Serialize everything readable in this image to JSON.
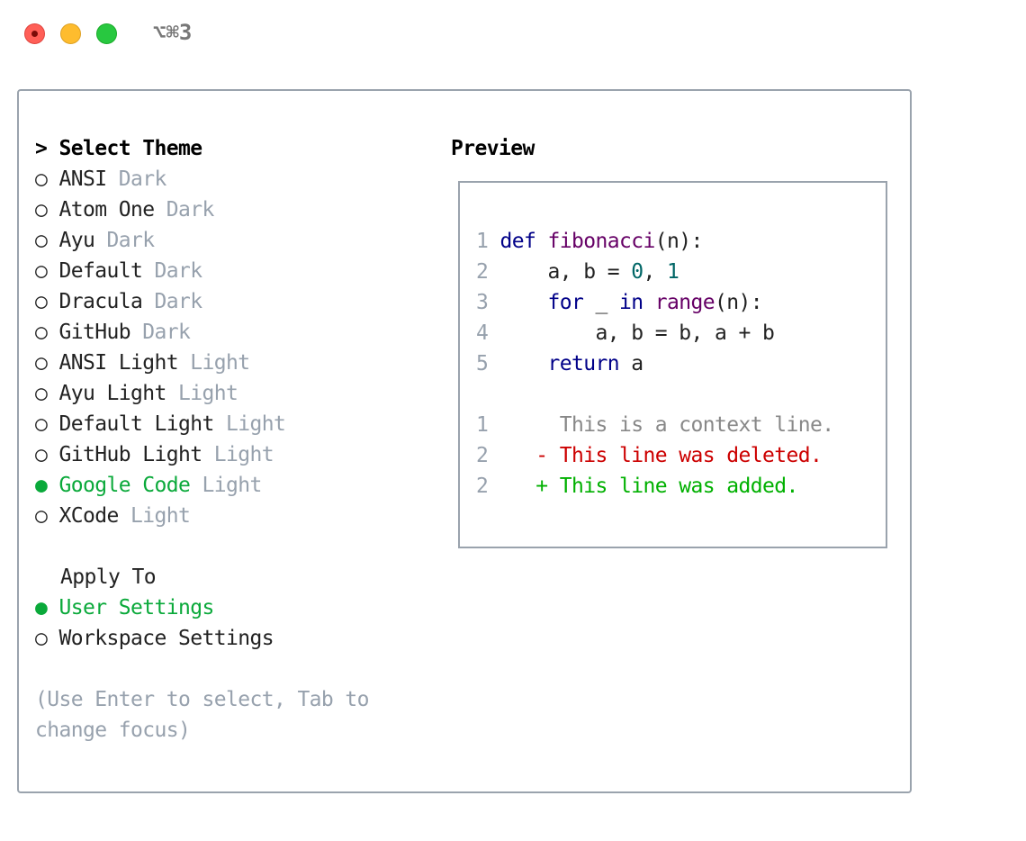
{
  "window": {
    "title": "⌥⌘3",
    "controls": {
      "close": "#ff5f57",
      "minimize": "#febc2e",
      "maximize": "#28c840"
    }
  },
  "select_theme": {
    "heading": "> Select Theme",
    "selected_index": 10,
    "themes": [
      {
        "name": "ANSI",
        "type": "Dark"
      },
      {
        "name": "Atom One",
        "type": "Dark"
      },
      {
        "name": "Ayu",
        "type": "Dark"
      },
      {
        "name": "Default",
        "type": "Dark"
      },
      {
        "name": "Dracula",
        "type": "Dark"
      },
      {
        "name": "GitHub",
        "type": "Dark"
      },
      {
        "name": "ANSI Light",
        "type": "Light"
      },
      {
        "name": "Ayu Light",
        "type": "Light"
      },
      {
        "name": "Default Light",
        "type": "Light"
      },
      {
        "name": "GitHub Light",
        "type": "Light"
      },
      {
        "name": "Google Code",
        "type": "Light"
      },
      {
        "name": "XCode",
        "type": "Light"
      }
    ]
  },
  "apply_to": {
    "heading": "Apply To",
    "selected_index": 0,
    "options": [
      "User Settings",
      "Workspace Settings"
    ]
  },
  "hint": [
    "(Use Enter to select, Tab to",
    "change focus)"
  ],
  "preview": {
    "heading": "Preview",
    "code": [
      {
        "n": "1",
        "parts": [
          [
            "kw",
            "def"
          ],
          [
            "",
            ""
          ],
          [
            "",
            ""
          ]
        ]
      }
    ],
    "code_lines": [
      "def fibonacci(n):",
      "    a, b = 0, 1",
      "    for _ in range(n):",
      "        a, b = b, a + b",
      "    return a"
    ],
    "diff": [
      {
        "n": "1",
        "sign": " ",
        "text": "This is a context line.",
        "kind": "context"
      },
      {
        "n": "2",
        "sign": "-",
        "text": "This line was deleted.",
        "kind": "deleted"
      },
      {
        "n": "2",
        "sign": "+",
        "text": "This line was added.",
        "kind": "added"
      }
    ]
  },
  "colors": {
    "accent_green": "#0aa93a",
    "keyword": "#000088",
    "function": "#660066",
    "number": "#006666",
    "deleted": "#cc0000",
    "added": "#00b000"
  }
}
